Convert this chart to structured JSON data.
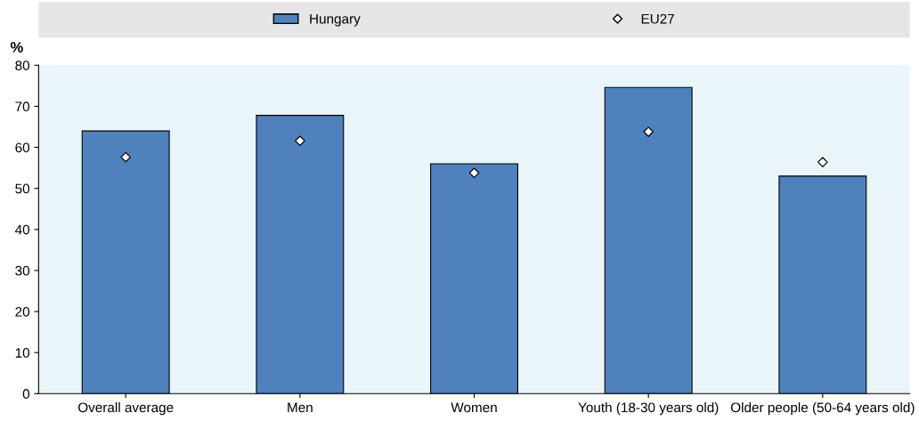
{
  "chart_data": {
    "type": "bar",
    "ylabel": "%",
    "categories": [
      "Overall average",
      "Men",
      "Women",
      "Youth (18-30 years old)",
      "Older people (50-64 years old)"
    ],
    "series": [
      {
        "name": "Hungary",
        "color": "#4f81bd",
        "values": [
          64.0,
          67.8,
          56.0,
          74.6,
          53.0
        ]
      },
      {
        "name": "EU27",
        "type": "scatter",
        "color": "#ffffff",
        "marker": "diamond",
        "values": [
          57.6,
          61.6,
          53.8,
          63.8,
          56.4
        ]
      }
    ],
    "ylim": [
      0,
      80
    ],
    "yticks": [
      0,
      10,
      20,
      30,
      40,
      50,
      60,
      70,
      80
    ],
    "grid": false,
    "legend": "top"
  }
}
